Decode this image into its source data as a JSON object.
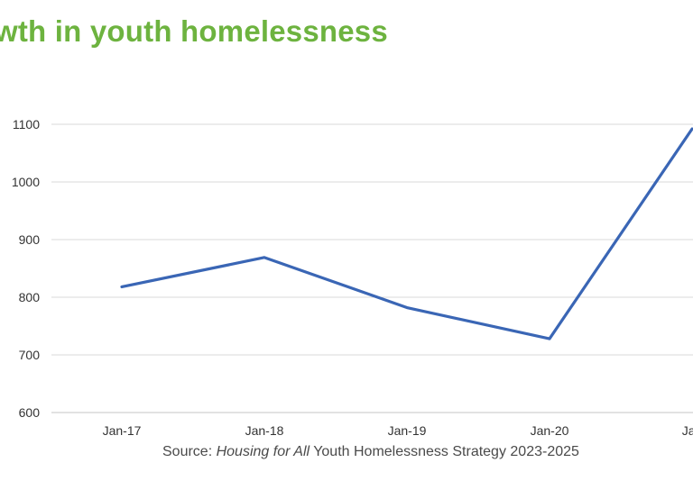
{
  "title": "wth in youth homelessness",
  "source": {
    "prefix": "Source: ",
    "italic": "Housing for All",
    "suffix": " Youth Homelessness Strategy 2023-2025"
  },
  "chart_data": {
    "type": "line",
    "title": "wth in youth homelessness",
    "xlabel": "",
    "ylabel": "",
    "categories": [
      "Jan-17",
      "Jan-18",
      "Jan-19",
      "Jan-20",
      "Jan"
    ],
    "series": [
      {
        "values": [
          818,
          869,
          782,
          728,
          1092
        ]
      }
    ],
    "ylim": [
      600,
      1100
    ],
    "yticks": [
      600,
      700,
      800,
      900,
      1000,
      1100
    ],
    "grid": true,
    "line_color": "#3a66b5",
    "grid_color": "#d8d8d8"
  }
}
